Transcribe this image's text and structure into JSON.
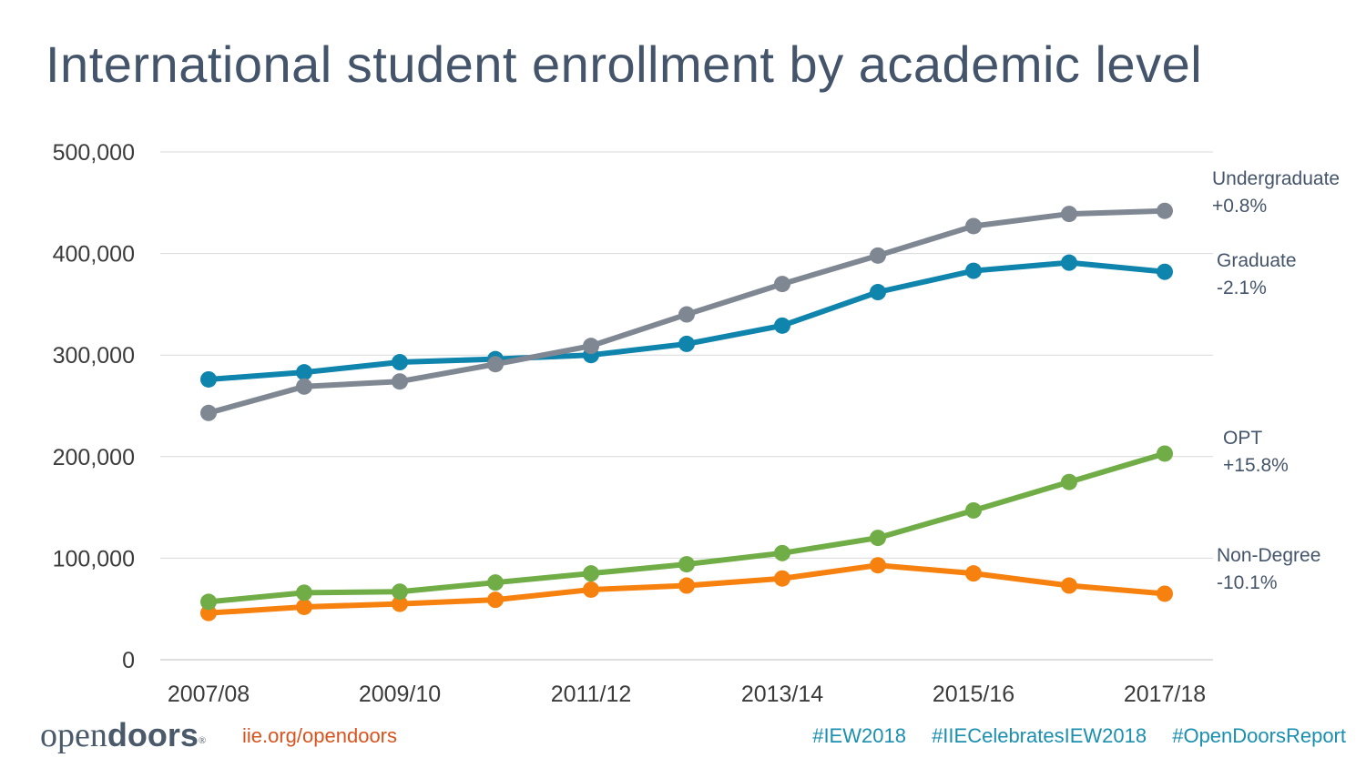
{
  "title": "International student enrollment by academic level",
  "chart_data": {
    "type": "line",
    "title": "International student enrollment by academic level",
    "categories": [
      "2007/08",
      "2008/09",
      "2009/10",
      "2010/11",
      "2011/12",
      "2012/13",
      "2013/14",
      "2014/15",
      "2015/16",
      "2016/17",
      "2017/18"
    ],
    "x_tick_labels": [
      "2007/08",
      "2009/10",
      "2011/12",
      "2013/14",
      "2015/16",
      "2017/18"
    ],
    "y_tick_labels": [
      "0",
      "100,000",
      "200,000",
      "300,000",
      "400,000",
      "500,000"
    ],
    "ylim": [
      0,
      500000
    ],
    "grid": true,
    "series": [
      {
        "name": "Undergraduate",
        "change": "+0.8%",
        "color": "#7f8793",
        "values": [
          243000,
          269000,
          274000,
          291000,
          309000,
          340000,
          370000,
          398000,
          427000,
          439000,
          442000
        ]
      },
      {
        "name": "Graduate",
        "change": "-2.1%",
        "color": "#0f84ad",
        "values": [
          276000,
          283000,
          293000,
          296000,
          300000,
          311000,
          329000,
          362000,
          383000,
          391000,
          382000
        ]
      },
      {
        "name": "OPT",
        "change": "+15.8%",
        "color": "#70ad47",
        "values": [
          57000,
          66000,
          67000,
          76000,
          85000,
          94000,
          105000,
          120000,
          147000,
          175000,
          203000
        ]
      },
      {
        "name": "Non-Degree",
        "change": "-10.1%",
        "color": "#f7810f",
        "values": [
          46000,
          52000,
          55000,
          59000,
          69000,
          73000,
          80000,
          93000,
          85000,
          73000,
          65000
        ]
      }
    ]
  },
  "footer": {
    "logo_light": "open",
    "logo_bold": "doors",
    "logo_mark": "®",
    "url": "iie.org/opendoors",
    "hashtags": [
      "#IEW2018",
      "#IIECelebratesIEW2018",
      "#OpenDoorsReport"
    ]
  }
}
